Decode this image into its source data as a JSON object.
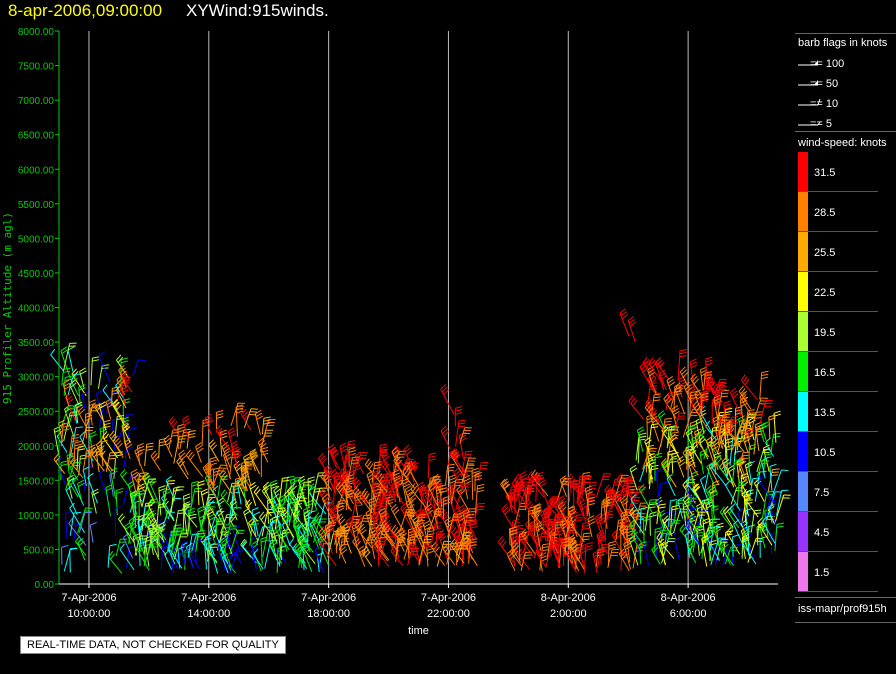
{
  "title": {
    "date": "8-apr-2006,09:00:00",
    "name": "XYWind:915winds."
  },
  "notice": "REAL-TIME DATA, NOT CHECKED FOR QUALITY",
  "legend": {
    "barb_title": "barb flags in knots",
    "barbs": [
      {
        "label": "== 100",
        "knots": 100
      },
      {
        "label": "== 50",
        "knots": 50
      },
      {
        "label": "== 10",
        "knots": 10
      },
      {
        "label": "== 5",
        "knots": 5
      }
    ],
    "speed_title": "wind-speed: knots",
    "source": "iss-mapr/prof915h"
  },
  "colors": {
    "axis": "#00cc00",
    "grid": "#bbbbbb",
    "title_date": "#ffff00"
  },
  "chart_data": {
    "type": "scatter",
    "title": "XYWind:915winds.",
    "xlabel": "time",
    "ylabel": "915 Profiler Altitude (m agl)",
    "ylim": [
      0,
      8000
    ],
    "xlim": [
      "2006-04-07T09:00:00",
      "2006-04-08T09:00:00"
    ],
    "y_ticks": [
      "0.00",
      "500.00",
      "1000.00",
      "1500.00",
      "2000.00",
      "2500.00",
      "3000.00",
      "3500.00",
      "4000.00",
      "4500.00",
      "5000.00",
      "5500.00",
      "6000.00",
      "6500.00",
      "7000.00",
      "7500.00",
      "8000.00"
    ],
    "x_ticks": [
      {
        "date": "7-Apr-2006",
        "time": "10:00:00",
        "value": "2006-04-07T10:00:00"
      },
      {
        "date": "7-Apr-2006",
        "time": "14:00:00",
        "value": "2006-04-07T14:00:00"
      },
      {
        "date": "7-Apr-2006",
        "time": "18:00:00",
        "value": "2006-04-07T18:00:00"
      },
      {
        "date": "7-Apr-2006",
        "time": "22:00:00",
        "value": "2006-04-07T22:00:00"
      },
      {
        "date": "8-Apr-2006",
        "time": "2:00:00",
        "value": "2006-04-08T02:00:00"
      },
      {
        "date": "8-Apr-2006",
        "time": "6:00:00",
        "value": "2006-04-08T06:00:00"
      }
    ],
    "grid": "vertical",
    "legend_position": "right",
    "colorbar": [
      {
        "label": "31.5",
        "color": "#ff0000"
      },
      {
        "label": "28.5",
        "color": "#ff7f00"
      },
      {
        "label": "25.5",
        "color": "#ffaa00"
      },
      {
        "label": "22.5",
        "color": "#ffff00"
      },
      {
        "label": "19.5",
        "color": "#aaff33"
      },
      {
        "label": "16.5",
        "color": "#00ee00"
      },
      {
        "label": "13.5",
        "color": "#00ffff"
      },
      {
        "label": "10.5",
        "color": "#0000ff"
      },
      {
        "label": "7.5",
        "color": "#5588ff"
      },
      {
        "label": "4.5",
        "color": "#9933ff"
      },
      {
        "label": "1.5",
        "color": "#ee77ee"
      }
    ],
    "wind_regions": [
      {
        "start": "2006-04-07T09:00:00",
        "end": "2006-04-07T11:30:00",
        "alt_min": 150,
        "alt_max": 3100,
        "speed_low": 6,
        "speed_high": 22,
        "density": 90
      },
      {
        "start": "2006-04-07T09:00:00",
        "end": "2006-04-07T11:30:00",
        "alt_min": 1500,
        "alt_max": 2900,
        "speed_low": 22,
        "speed_high": 32,
        "density": 40
      },
      {
        "start": "2006-04-07T11:30:00",
        "end": "2006-04-07T16:00:00",
        "alt_min": 150,
        "alt_max": 1200,
        "speed_low": 9,
        "speed_high": 24,
        "density": 170
      },
      {
        "start": "2006-04-07T11:30:00",
        "end": "2006-04-07T16:00:00",
        "alt_min": 1200,
        "alt_max": 2300,
        "speed_low": 24,
        "speed_high": 32,
        "density": 55
      },
      {
        "start": "2006-04-07T16:00:00",
        "end": "2006-04-07T18:00:00",
        "alt_min": 150,
        "alt_max": 1200,
        "speed_low": 10,
        "speed_high": 24,
        "density": 90
      },
      {
        "start": "2006-04-07T18:00:00",
        "end": "2006-04-07T23:00:00",
        "alt_min": 250,
        "alt_max": 1700,
        "speed_low": 26,
        "speed_high": 34,
        "density": 240
      },
      {
        "start": "2006-04-08T00:00:00",
        "end": "2006-04-08T04:15:00",
        "alt_min": 150,
        "alt_max": 1300,
        "speed_low": 27,
        "speed_high": 34,
        "density": 170
      },
      {
        "start": "2006-04-08T04:15:00",
        "end": "2006-04-08T09:00:00",
        "alt_min": 250,
        "alt_max": 2200,
        "speed_low": 8,
        "speed_high": 30,
        "density": 260
      },
      {
        "start": "2006-04-08T04:30:00",
        "end": "2006-04-08T07:00:00",
        "alt_min": 2200,
        "alt_max": 3000,
        "speed_low": 27,
        "speed_high": 34,
        "density": 45
      },
      {
        "start": "2006-04-08T07:00:00",
        "end": "2006-04-08T08:30:00",
        "alt_min": 1900,
        "alt_max": 2700,
        "speed_low": 24,
        "speed_high": 34,
        "density": 30
      },
      {
        "start": "2006-04-07T22:00:00",
        "end": "2006-04-07T22:30:00",
        "alt_min": 1800,
        "alt_max": 2600,
        "speed_low": 29,
        "speed_high": 33,
        "density": 6
      },
      {
        "start": "2006-04-08T04:00:00",
        "end": "2006-04-08T04:20:00",
        "alt_min": 3500,
        "alt_max": 3800,
        "speed_low": 30,
        "speed_high": 33,
        "density": 2
      },
      {
        "start": "2006-04-07T14:00:00",
        "end": "2006-04-07T15:00:00",
        "alt_min": 1600,
        "alt_max": 2000,
        "speed_low": 29,
        "speed_high": 33,
        "density": 4
      }
    ]
  }
}
